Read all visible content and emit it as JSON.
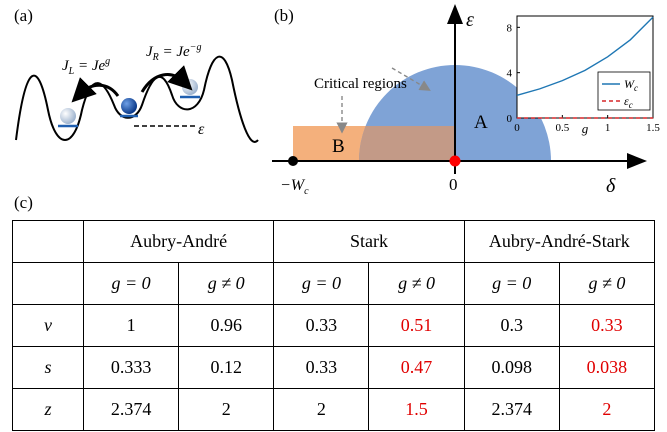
{
  "panels": {
    "a": "(a)",
    "b": "(b)",
    "c": "(c)"
  },
  "panel_a": {
    "jl_label": "J_L = Je^g",
    "jr_label": "J_R = Je^-g",
    "epsilon_label": "ε"
  },
  "panel_b": {
    "critical_regions_label": "Critical regions",
    "region_a": "A",
    "region_b": "B",
    "x_axis_symbol": "δ",
    "y_axis_symbol": "ε",
    "minus_wc_label": "−W_c",
    "origin_label": "0",
    "colors": {
      "region_a": "#7fa3d6",
      "region_b": "#f4b07c",
      "overlap": "#c39a87",
      "point_red": "#ff0000"
    }
  },
  "chart_data": {
    "type": "line",
    "xlabel": "g",
    "xlim": [
      0,
      1.5
    ],
    "ylim": [
      0,
      9
    ],
    "x_ticks": [
      "0",
      "0.5",
      "1",
      "1.5"
    ],
    "y_ticks": [
      "0",
      "4",
      "8"
    ],
    "legend_position": "bottom-right",
    "series": [
      {
        "name": "W_c",
        "style": "solid",
        "color": "#1f77b4",
        "x": [
          0,
          0.25,
          0.5,
          0.75,
          1.0,
          1.25,
          1.5
        ],
        "y": [
          2.0,
          2.57,
          3.3,
          4.2,
          5.4,
          6.9,
          8.9
        ]
      },
      {
        "name": "ε_c",
        "style": "dashed",
        "color": "#d62728",
        "x": [
          0,
          1.5
        ],
        "y": [
          0,
          0
        ]
      }
    ]
  },
  "table": {
    "headers": [
      "",
      "Aubry-André",
      "Stark",
      "Aubry-André-Stark"
    ],
    "subheaders": [
      "",
      "g = 0",
      "g ≠ 0",
      "g = 0",
      "g ≠ 0",
      "g = 0",
      "g ≠ 0"
    ],
    "rows": [
      {
        "symbol": "ν",
        "values": [
          "1",
          "0.96",
          "0.33",
          "0.51",
          "0.3",
          "0.33"
        ],
        "highlight": [
          false,
          false,
          false,
          true,
          false,
          true
        ]
      },
      {
        "symbol": "s",
        "values": [
          "0.333",
          "0.12",
          "0.33",
          "0.47",
          "0.098",
          "0.038"
        ],
        "highlight": [
          false,
          false,
          false,
          true,
          false,
          true
        ]
      },
      {
        "symbol": "z",
        "values": [
          "2.374",
          "2",
          "2",
          "1.5",
          "2.374",
          "2"
        ],
        "highlight": [
          false,
          false,
          false,
          true,
          false,
          true
        ]
      }
    ],
    "highlight_color": "#e00000"
  }
}
